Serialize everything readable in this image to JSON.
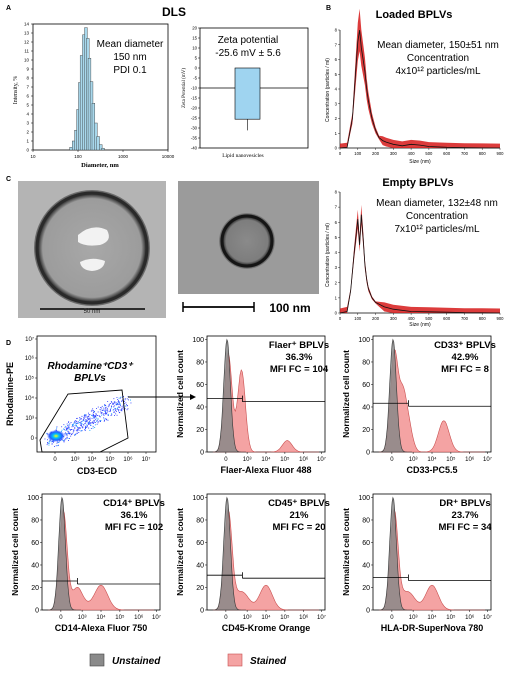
{
  "panels": {
    "A": {
      "label": "A",
      "title": "DLS",
      "hist": {
        "annotation": [
          "Mean diameter",
          "150 nm",
          "PDI 0.1"
        ],
        "ylabel": "Intensity, %",
        "xlabel": "Diameter, nm",
        "yticks": [
          "0",
          "1",
          "2",
          "3",
          "4",
          "5",
          "6",
          "7",
          "8",
          "9",
          "10",
          "11",
          "12",
          "13",
          "14"
        ],
        "xticks": [
          "10",
          "100",
          "1000",
          "10000"
        ]
      },
      "zeta": {
        "annotation": [
          "Zeta potential",
          "-25.6 mV ± 5.6"
        ],
        "ylabel": "Zeta Potential (mV)",
        "xlabel": "Lipid nanovesicles",
        "yticks": [
          "20",
          "15",
          "10",
          "5",
          "0",
          "-5",
          "-10",
          "-15",
          "-20",
          "-25",
          "-30",
          "-35",
          "-40"
        ]
      }
    },
    "B": {
      "label": "B",
      "title": "Loaded BPLVs",
      "annotation": [
        "Mean diameter, 150±51 nm",
        "Concentration",
        "4x10¹² particles/mL"
      ],
      "ylabel": "Concentration (particles / ml)",
      "xlabel": "Size (nm)",
      "xticks": [
        "0",
        "100",
        "200",
        "300",
        "400",
        "500",
        "600",
        "700",
        "800",
        "900"
      ],
      "yticks": [
        "0",
        "1",
        "2",
        "3",
        "4",
        "5",
        "6",
        "7",
        "8"
      ]
    },
    "C": {
      "label": "C",
      "scale_left": "50 nm",
      "scale_right": "100 nm",
      "empty": {
        "title": "Empty BPLVs",
        "annotation": [
          "Mean diameter, 132±48 nm",
          "Concentration",
          "7x10¹² particles/mL"
        ],
        "ylabel": "Concentration (particles / ml)",
        "xlabel": "Size (nm)"
      }
    },
    "D": {
      "label": "D",
      "scatter": {
        "gate_label": [
          "Rhodamine⁺CD3⁺",
          "BPLVs"
        ],
        "ylabel": "Rhodamine-PE",
        "xlabel": "CD3-ECD",
        "yticks": [
          "10⁷",
          "10⁶",
          "10⁵",
          "10⁴",
          "10³",
          "0"
        ],
        "xticks": [
          "0",
          "10³",
          "10⁴",
          "10⁵",
          "10⁶",
          "10⁷"
        ]
      },
      "hist_ylabel": "Normalized cell count",
      "hist_yticks": [
        "0",
        "20",
        "40",
        "60",
        "80",
        "100"
      ],
      "hist_xticks": [
        "0",
        "10³",
        "10⁴",
        "10⁵",
        "10⁶",
        "10⁷"
      ],
      "histograms": [
        {
          "title": "Flaer⁺ BPLVs",
          "pct": "36.3%",
          "mfi": "MFI FC = 104",
          "xlabel": "Flaer-Alexa Fluor 488"
        },
        {
          "title": "CD33⁺ BPLVs",
          "pct": "42.9%",
          "mfi": "MFI FC = 8",
          "xlabel": "CD33-PC5.5"
        },
        {
          "title": "CD14⁺ BPLVs",
          "pct": "36.1%",
          "mfi": "MFI FC = 102",
          "xlabel": "CD14-Alexa Fluor 750"
        },
        {
          "title": "CD45⁺ BPLVs",
          "pct": "21%",
          "mfi": "MFI FC = 20",
          "xlabel": "CD45-Krome Orange"
        },
        {
          "title": "DR⁺ BPLVs",
          "pct": "23.7%",
          "mfi": "MFI FC = 34",
          "xlabel": "HLA-DR-SuperNova 780"
        }
      ],
      "legend": {
        "unstained": "Unstained",
        "stained": "Stained"
      }
    }
  },
  "colors": {
    "dls_bar": "#a8d8ec",
    "zeta_bar": "#9fd4f0",
    "nta_line": "#d61a1a",
    "stained": "#f4a3a3",
    "stained_edge": "#c94e4e",
    "unstained": "#888888"
  },
  "chart_data": [
    {
      "type": "bar",
      "title": "DLS",
      "xlabel": "Diameter, nm",
      "ylabel": "Intensity, %",
      "categories": [
        "70",
        "80",
        "90",
        "100",
        "110",
        "120",
        "135",
        "150",
        "165",
        "180",
        "200",
        "220",
        "250",
        "280",
        "320",
        "360"
      ],
      "values": [
        0.3,
        1.0,
        2.2,
        4.5,
        7.5,
        10.5,
        12.8,
        13.6,
        12.4,
        10.2,
        7.6,
        5.2,
        3.0,
        1.5,
        0.6,
        0.2
      ],
      "ylim": [
        0,
        14
      ]
    },
    {
      "type": "bar",
      "title": "Zeta potential",
      "xlabel": "Lipid nanovesicles",
      "ylabel": "Zeta Potential (mV)",
      "categories": [
        "Lipid nanovesicles"
      ],
      "values": [
        -25.6
      ],
      "ylim": [
        -40,
        20
      ]
    },
    {
      "type": "line",
      "title": "Loaded BPLVs",
      "xlabel": "Size (nm)",
      "ylabel": "Concentration (particles / ml)",
      "x": [
        0,
        40,
        70,
        90,
        100,
        110,
        120,
        130,
        140,
        150,
        160,
        170,
        180,
        200,
        220,
        240,
        260,
        300,
        350,
        400,
        450,
        500,
        600,
        700,
        800,
        900
      ],
      "values": [
        0,
        0.05,
        2.0,
        5.5,
        7.2,
        8.0,
        6.8,
        6.0,
        5.2,
        4.0,
        3.2,
        2.6,
        2.0,
        1.2,
        0.7,
        0.5,
        0.4,
        0.25,
        0.15,
        0.25,
        0.2,
        0.1,
        0.05,
        0.02,
        0.01,
        0
      ],
      "ylim": [
        0,
        8
      ]
    },
    {
      "type": "line",
      "title": "Empty BPLVs",
      "xlabel": "Size (nm)",
      "ylabel": "Concentration (particles / ml)",
      "x": [
        0,
        40,
        60,
        80,
        100,
        110,
        120,
        130,
        140,
        150,
        160,
        180,
        200,
        250,
        300,
        400,
        500,
        600,
        700,
        800,
        900
      ],
      "values": [
        0,
        0.1,
        1.5,
        4.0,
        6.2,
        4.5,
        6.5,
        5.0,
        3.2,
        2.2,
        1.6,
        1.0,
        0.7,
        0.4,
        0.25,
        0.1,
        0.08,
        0.05,
        0.02,
        0.01,
        0
      ],
      "ylim": [
        0,
        8
      ]
    }
  ]
}
